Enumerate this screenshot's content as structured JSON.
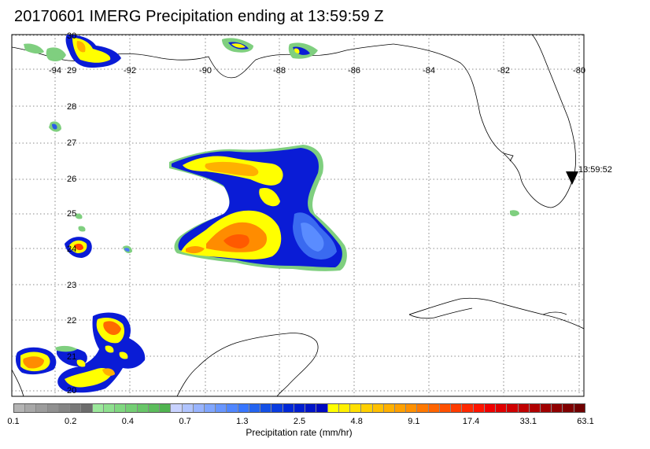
{
  "title": "20170601 IMERG Precipitation ending at 13:59:59 Z",
  "map": {
    "lat_labels": [
      "30",
      "29",
      "28",
      "27",
      "26",
      "25",
      "24",
      "23",
      "22",
      "21",
      "20"
    ],
    "lon_labels": [
      "-94",
      "-92",
      "-90",
      "-88",
      "-86",
      "-84",
      "-82",
      "-80"
    ],
    "marker_time": "13:59:52"
  },
  "colorbar": {
    "colors": [
      "#b4b4b4",
      "#a8a8a8",
      "#9c9c9c",
      "#909090",
      "#848484",
      "#787878",
      "#6c6c6c",
      "#9be89b",
      "#8ee08e",
      "#80d880",
      "#74cf74",
      "#68c668",
      "#5cbd5c",
      "#50b450",
      "#c8d2ff",
      "#b0c4ff",
      "#98b4ff",
      "#80a6ff",
      "#6896ff",
      "#5086ff",
      "#3876ff",
      "#2464f0",
      "#1450e6",
      "#0a3ce0",
      "#0028d8",
      "#001ed0",
      "#0014c8",
      "#000ac0",
      "#ffff00",
      "#fff000",
      "#ffe000",
      "#ffd000",
      "#ffc000",
      "#ffb000",
      "#ffa000",
      "#ff9000",
      "#ff7800",
      "#ff6400",
      "#ff5000",
      "#ff3c00",
      "#ff2800",
      "#ff1400",
      "#f00000",
      "#e00000",
      "#d00000",
      "#c00000",
      "#b00000",
      "#a00000",
      "#900000",
      "#800000",
      "#700000"
    ],
    "tick_labels": [
      "0.1",
      "0.2",
      "0.4",
      "0.7",
      "1.3",
      "2.5",
      "4.8",
      "9.1",
      "17.4",
      "33.1",
      "63.1"
    ],
    "label": "Precipitation rate (mm/hr)"
  }
}
